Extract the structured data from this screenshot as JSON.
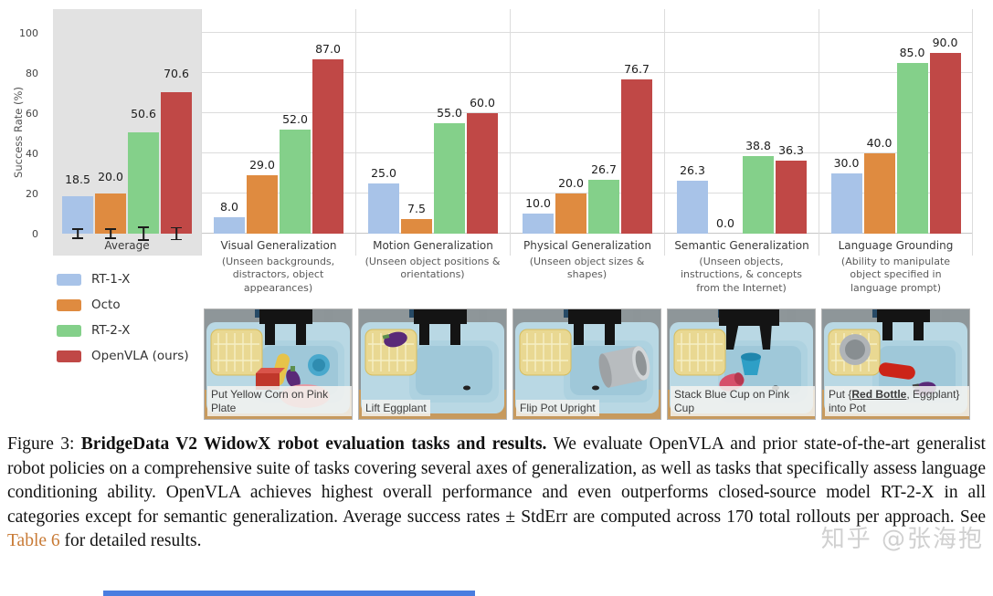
{
  "chart_data": {
    "type": "bar",
    "title": "",
    "ylabel": "Success Rate (%)",
    "yticks": [
      0,
      20,
      40,
      60,
      80,
      100
    ],
    "ylim": [
      0,
      100
    ],
    "grid": true,
    "legend_position": "lower left",
    "average_panel_bg": "#e2e2e2",
    "categories": [
      {
        "label": "Average",
        "sublabel": ""
      },
      {
        "label": "Visual Generalization",
        "sublabel": "(Unseen backgrounds, distractors, object appearances)"
      },
      {
        "label": "Motion Generalization",
        "sublabel": "(Unseen object positions & orientations)"
      },
      {
        "label": "Physical Generalization",
        "sublabel": "(Unseen object sizes & shapes)"
      },
      {
        "label": "Semantic Generalization",
        "sublabel": "(Unseen objects, instructions, & concepts from the Internet)"
      },
      {
        "label": "Language Grounding",
        "sublabel": "(Ability to manipulate object specified in language prompt)"
      }
    ],
    "series": [
      {
        "name": "RT-1-X",
        "color": "#a8c3e8",
        "values": [
          18.5,
          8.0,
          25.0,
          10.0,
          26.3,
          30.0
        ]
      },
      {
        "name": "Octo",
        "color": "#df8b40",
        "values": [
          20.0,
          29.0,
          7.5,
          20.0,
          0.0,
          40.0
        ]
      },
      {
        "name": "RT-2-X",
        "color": "#84d08a",
        "values": [
          50.6,
          52.0,
          55.0,
          26.7,
          38.8,
          85.0
        ]
      },
      {
        "name": "OpenVLA (ours)",
        "color": "#c04846",
        "values": [
          70.6,
          87.0,
          60.0,
          76.7,
          36.3,
          90.0
        ]
      }
    ],
    "error_bars": {
      "category": "Average",
      "values": [
        2.7,
        2.6,
        3.5,
        3.3
      ]
    }
  },
  "legend": {
    "entries": [
      {
        "label": "RT-1-X",
        "color": "#a8c3e8"
      },
      {
        "label": "Octo",
        "color": "#df8b40"
      },
      {
        "label": "RT-2-X",
        "color": "#84d08a"
      },
      {
        "label": "OpenVLA (ours)",
        "color": "#c04846"
      }
    ]
  },
  "task_images": [
    {
      "label": "Put Yellow Corn on Pink Plate"
    },
    {
      "label": "Lift Eggplant"
    },
    {
      "label": "Flip Pot Upright"
    },
    {
      "label": "Stack Blue Cup on Pink Cup"
    },
    {
      "label_prefix": "Put {",
      "label_highlight": "Red Bottle",
      "label_suffix": ", Eggplant} into Pot"
    }
  ],
  "caption": {
    "prefix": "Figure 3: ",
    "title_bold": "BridgeData V2 WidowX robot evaluation tasks and results.",
    "body_1": " We evaluate OpenVLA and prior state-of-the-art generalist robot policies on a comprehensive suite of tasks covering several axes of generalization, as well as tasks that specifically assess language conditioning ability. OpenVLA achieves highest overall performance and even outperforms closed-source model RT-2-X in all categories except for semantic generalization. Average success rates ± StdErr are computed across 170 total rollouts per approach. See ",
    "link": "Table 6",
    "body_2": " for detailed results."
  },
  "watermark": {
    "text": "知乎 @张海抱"
  }
}
